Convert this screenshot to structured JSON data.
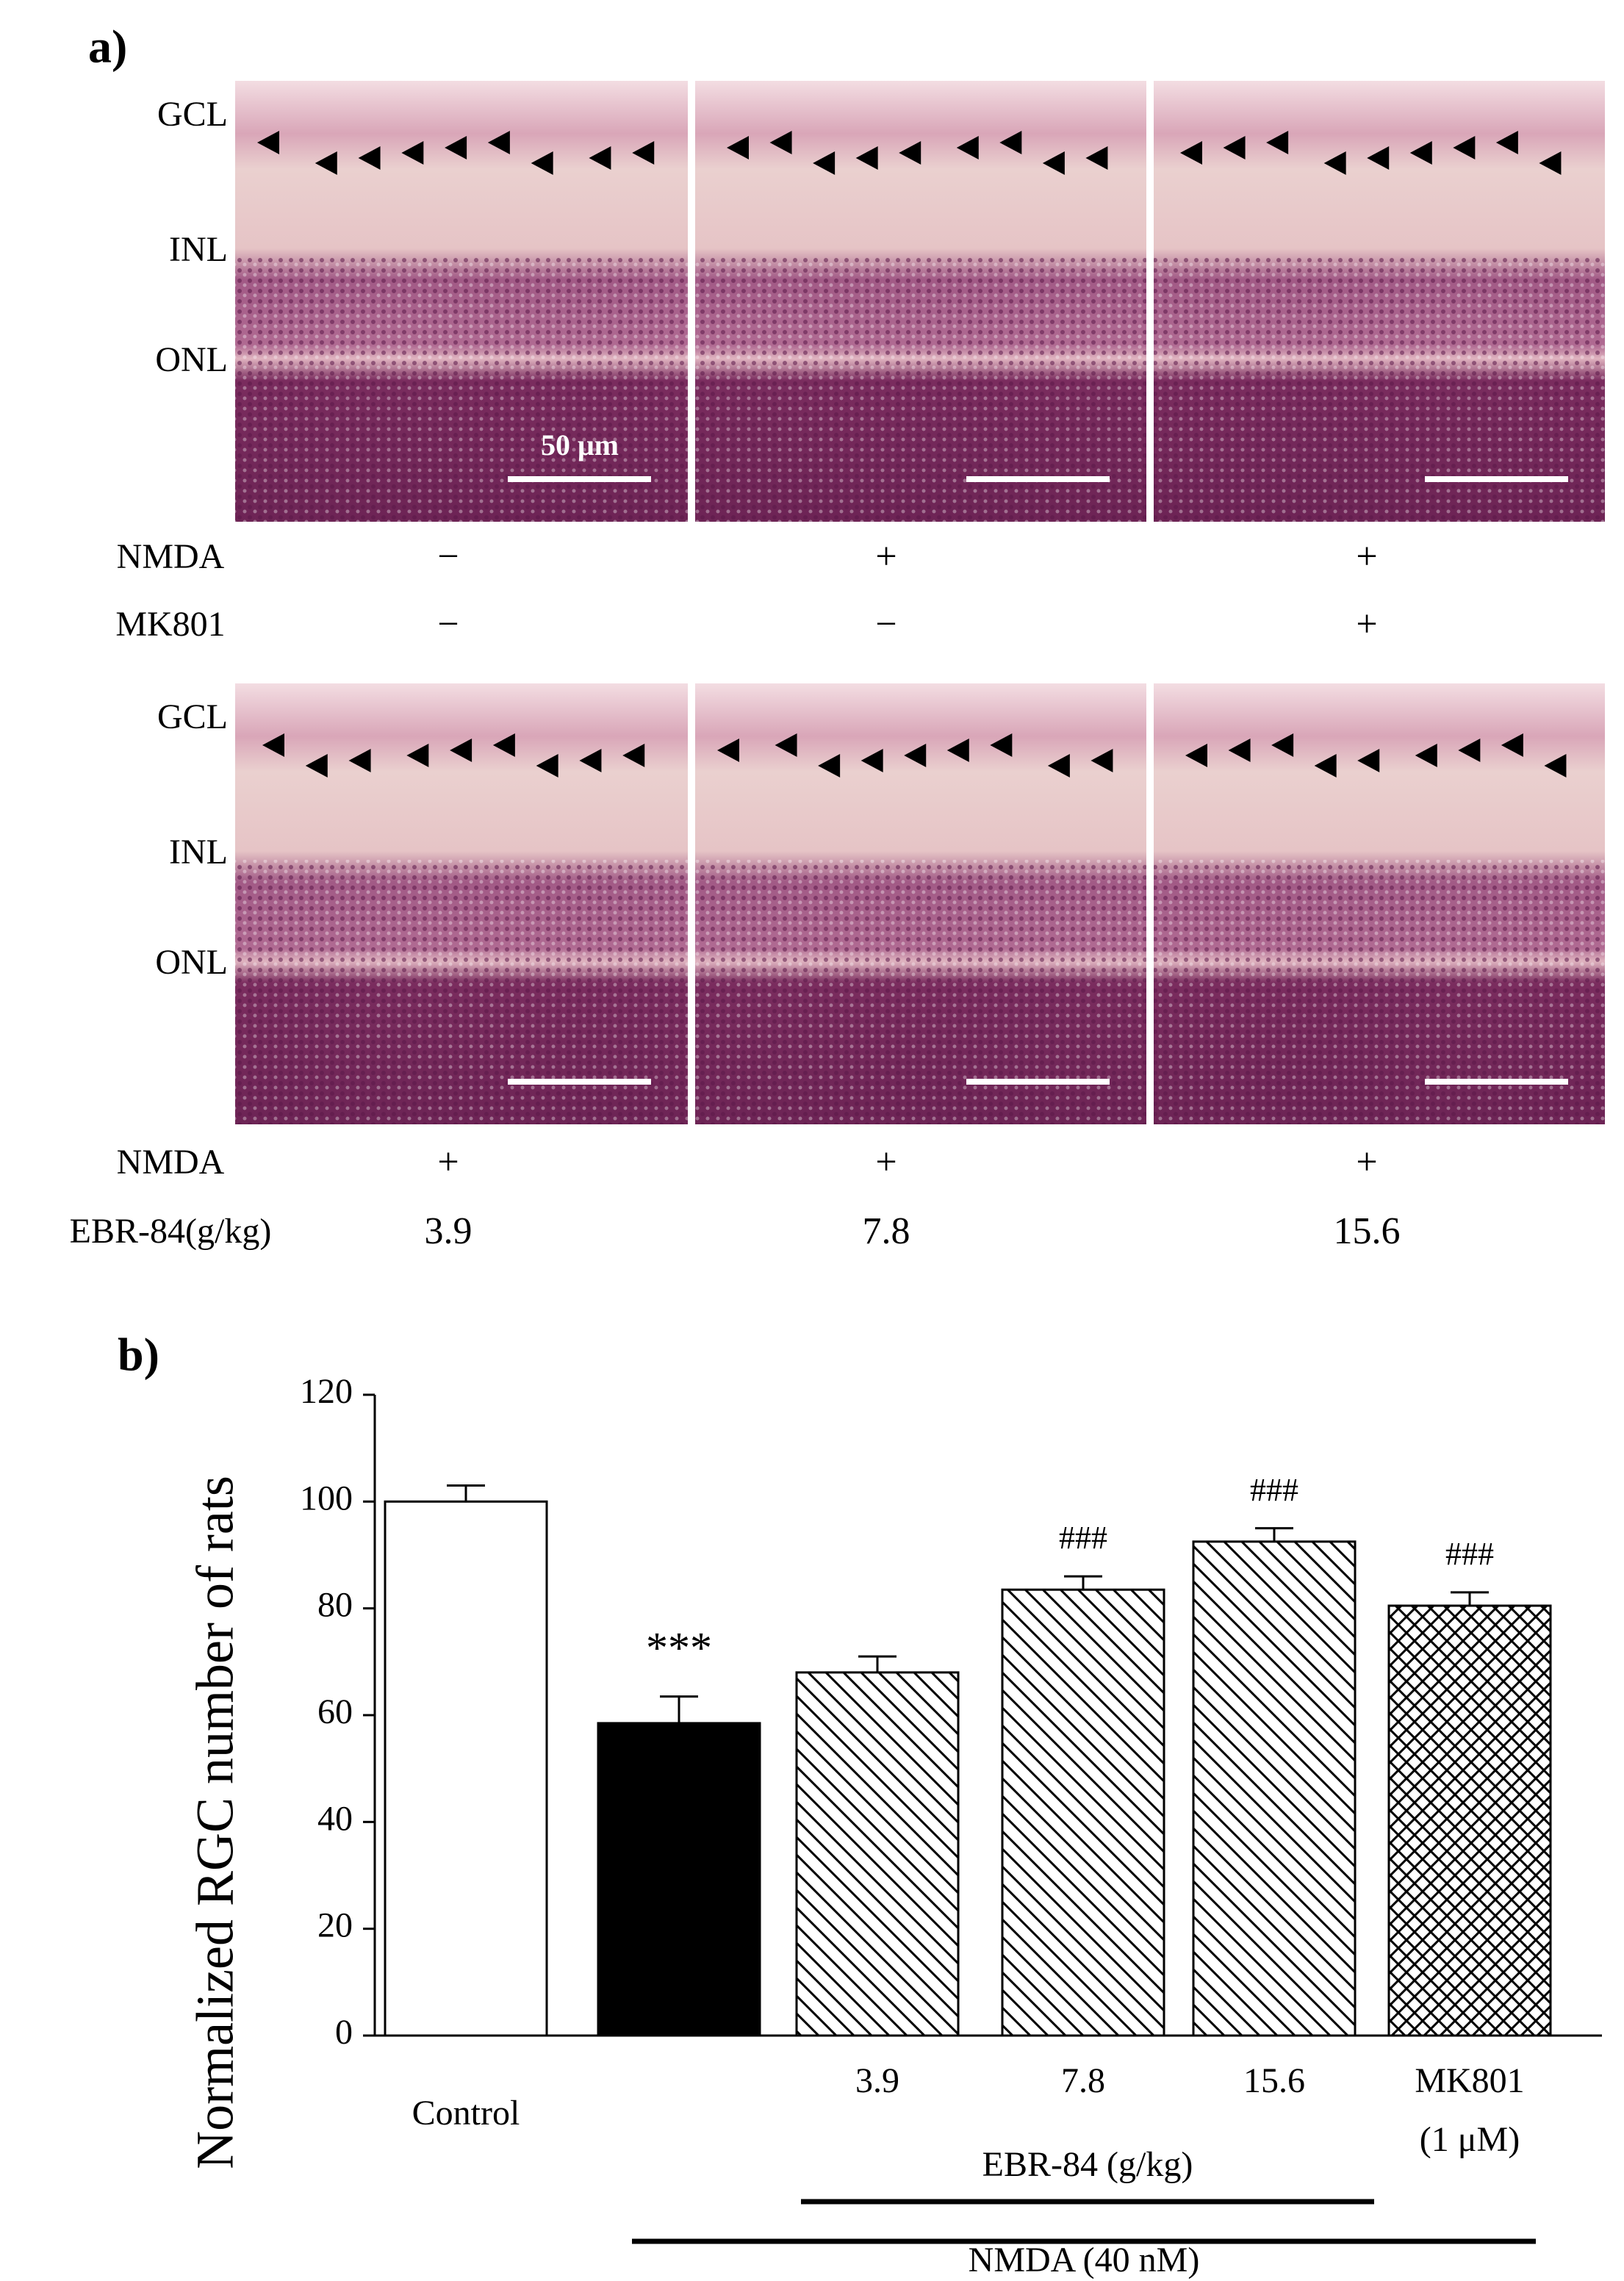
{
  "panel_a": {
    "label": "a)",
    "scale_bar": "50 μm",
    "rows": [
      {
        "layers": [
          "GCL",
          "INL",
          "ONL"
        ],
        "conditions": [
          {
            "name": "NMDA",
            "marks": [
              "−",
              "+",
              "+"
            ]
          },
          {
            "name": "MK801",
            "marks": [
              "−",
              "−",
              "+"
            ]
          }
        ]
      },
      {
        "layers": [
          "GCL",
          "INL",
          "ONL"
        ],
        "conditions": [
          {
            "name": "NMDA",
            "marks": [
              "+",
              "+",
              "+"
            ]
          },
          {
            "name": "EBR-84(g/kg)",
            "marks": [
              "3.9",
              "7.8",
              "15.6"
            ]
          }
        ]
      }
    ]
  },
  "chart_data": {
    "type": "bar",
    "panel_label": "b)",
    "ylabel": "Normalized RGC number of rats",
    "categories": [
      "Control",
      null,
      "3.9",
      "7.8",
      "15.6",
      [
        "MK801",
        "(1 μM)"
      ]
    ],
    "values": [
      100,
      58.5,
      68,
      83.5,
      92.5,
      80.5
    ],
    "errors": [
      3,
      5,
      3,
      2.5,
      2.5,
      2.5
    ],
    "annotations": [
      null,
      "***",
      null,
      "###",
      "###",
      "###"
    ],
    "fills": [
      "white",
      "black",
      "diagonal",
      "diagonal",
      "diagonal",
      "crosshatch"
    ],
    "groups": [
      {
        "label": "EBR-84 (g/kg)"
      },
      {
        "label": "NMDA (40 nM)"
      }
    ],
    "ylim": [
      0,
      120
    ],
    "yticks": [
      0,
      20,
      40,
      60,
      80,
      100,
      120
    ]
  }
}
